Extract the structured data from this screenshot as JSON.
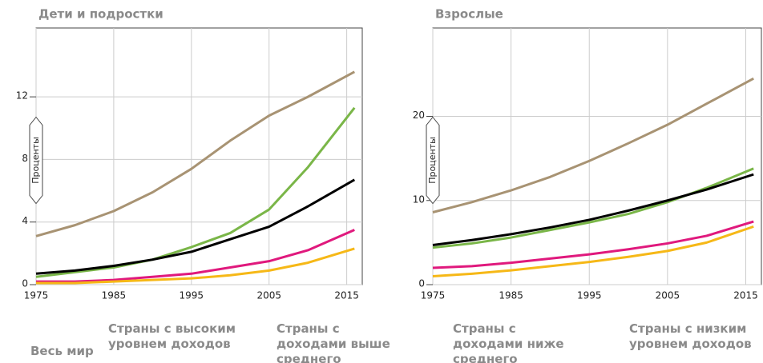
{
  "chart_data": [
    {
      "type": "line",
      "title": "Дети и подростки",
      "ylabel": "Проценты",
      "x": [
        1975,
        1980,
        1985,
        1990,
        1995,
        2000,
        2005,
        2010,
        2016
      ],
      "xlim": [
        1975,
        2017
      ],
      "xticks": [
        1975,
        1985,
        1995,
        2005,
        2015
      ],
      "ylim": [
        0,
        16.4
      ],
      "yticks": [
        0,
        4,
        8,
        12
      ],
      "grid": true,
      "series": [
        {
          "name": "Страны с высоким уровнем доходов",
          "color": "#a89373",
          "values": [
            3.1,
            3.8,
            4.7,
            5.9,
            7.4,
            9.2,
            10.8,
            12.0,
            13.6
          ]
        },
        {
          "name": "Страны с доходами выше среднего",
          "color": "#7ab648",
          "values": [
            0.5,
            0.8,
            1.1,
            1.6,
            2.4,
            3.3,
            4.8,
            7.5,
            11.3
          ]
        },
        {
          "name": "Весь мир",
          "color": "#000000",
          "values": [
            0.7,
            0.9,
            1.2,
            1.6,
            2.1,
            2.9,
            3.7,
            5.0,
            6.7
          ]
        },
        {
          "name": "Страны с доходами ниже среднего",
          "color": "#e0197d",
          "values": [
            0.2,
            0.2,
            0.3,
            0.5,
            0.7,
            1.1,
            1.5,
            2.2,
            3.5
          ]
        },
        {
          "name": "Страны с низким уровнем доходов",
          "color": "#f6b817",
          "values": [
            0.1,
            0.1,
            0.2,
            0.3,
            0.4,
            0.6,
            0.9,
            1.4,
            2.3
          ]
        }
      ]
    },
    {
      "type": "line",
      "title": "Взрослые",
      "ylabel": "Проценты",
      "x": [
        1975,
        1980,
        1985,
        1990,
        1995,
        2000,
        2005,
        2010,
        2016
      ],
      "xlim": [
        1975,
        2017
      ],
      "xticks": [
        1975,
        1985,
        1995,
        2005,
        2015
      ],
      "ylim": [
        0,
        30.5
      ],
      "yticks": [
        0,
        10,
        20
      ],
      "grid": true,
      "series": [
        {
          "color": "#a89373",
          "values": [
            8.6,
            9.8,
            11.2,
            12.8,
            14.7,
            16.8,
            19.0,
            21.5,
            24.5
          ]
        },
        {
          "color": "#7ab648",
          "values": [
            4.4,
            4.9,
            5.6,
            6.5,
            7.4,
            8.4,
            9.8,
            11.5,
            13.8
          ]
        },
        {
          "color": "#000000",
          "values": [
            4.7,
            5.3,
            6.0,
            6.8,
            7.7,
            8.8,
            10.0,
            11.3,
            13.1
          ]
        },
        {
          "color": "#e0197d",
          "values": [
            2.0,
            2.2,
            2.6,
            3.1,
            3.6,
            4.2,
            4.9,
            5.8,
            7.5
          ]
        },
        {
          "color": "#f6b817",
          "values": [
            1.0,
            1.3,
            1.7,
            2.2,
            2.7,
            3.3,
            4.0,
            5.0,
            6.9
          ]
        }
      ]
    }
  ]
}
